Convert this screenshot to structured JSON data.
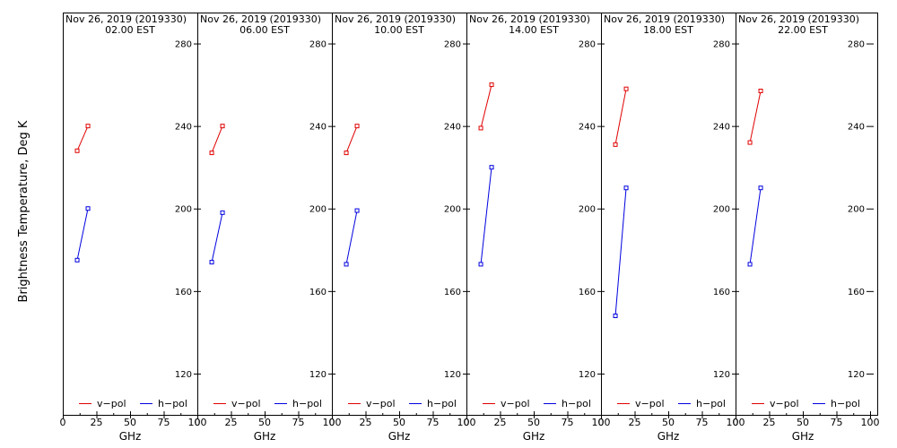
{
  "ylabel": "Brightness Temperature, Deg K",
  "colors": {
    "vpol": "#e00000",
    "hpol": "#0000e0",
    "axis": "#000000",
    "background": "#ffffff"
  },
  "chart_data": [
    {
      "type": "line",
      "title": "Nov 26, 2019 (2019330)",
      "subtitle": "02.00 EST",
      "xlabel": "GHz",
      "xlim": [
        0,
        100
      ],
      "ylim": [
        100,
        295
      ],
      "x_ticks": [
        0,
        25,
        50,
        75,
        100
      ],
      "y_ticks": [
        120,
        160,
        200,
        240,
        280
      ],
      "legend": [
        "v−pol",
        "h−pol"
      ],
      "series": [
        {
          "name": "v−pol",
          "x": [
            10.7,
            18.7
          ],
          "values": [
            228,
            240
          ]
        },
        {
          "name": "h−pol",
          "x": [
            10.7,
            18.7
          ],
          "values": [
            175,
            200
          ]
        }
      ]
    },
    {
      "type": "line",
      "title": "Nov 26, 2019 (2019330)",
      "subtitle": "06.00 EST",
      "xlabel": "GHz",
      "xlim": [
        0,
        100
      ],
      "ylim": [
        100,
        295
      ],
      "x_ticks": [
        0,
        25,
        50,
        75,
        100
      ],
      "y_ticks": [
        120,
        160,
        200,
        240,
        280
      ],
      "legend": [
        "v−pol",
        "h−pol"
      ],
      "series": [
        {
          "name": "v−pol",
          "x": [
            10.7,
            18.7
          ],
          "values": [
            227,
            240
          ]
        },
        {
          "name": "h−pol",
          "x": [
            10.7,
            18.7
          ],
          "values": [
            174,
            198
          ]
        }
      ]
    },
    {
      "type": "line",
      "title": "Nov 26, 2019 (2019330)",
      "subtitle": "10.00 EST",
      "xlabel": "GHz",
      "xlim": [
        0,
        100
      ],
      "ylim": [
        100,
        295
      ],
      "x_ticks": [
        0,
        25,
        50,
        75,
        100
      ],
      "y_ticks": [
        120,
        160,
        200,
        240,
        280
      ],
      "legend": [
        "v−pol",
        "h−pol"
      ],
      "series": [
        {
          "name": "v−pol",
          "x": [
            10.7,
            18.7
          ],
          "values": [
            227,
            240
          ]
        },
        {
          "name": "h−pol",
          "x": [
            10.7,
            18.7
          ],
          "values": [
            173,
            199
          ]
        }
      ]
    },
    {
      "type": "line",
      "title": "Nov 26, 2019 (2019330)",
      "subtitle": "14.00 EST",
      "xlabel": "GHz",
      "xlim": [
        0,
        100
      ],
      "ylim": [
        100,
        295
      ],
      "x_ticks": [
        0,
        25,
        50,
        75,
        100
      ],
      "y_ticks": [
        120,
        160,
        200,
        240,
        280
      ],
      "legend": [
        "v−pol",
        "h−pol"
      ],
      "series": [
        {
          "name": "v−pol",
          "x": [
            10.7,
            18.7
          ],
          "values": [
            239,
            260
          ]
        },
        {
          "name": "h−pol",
          "x": [
            10.7,
            18.7
          ],
          "values": [
            173,
            220
          ]
        }
      ]
    },
    {
      "type": "line",
      "title": "Nov 26, 2019 (2019330)",
      "subtitle": "18.00 EST",
      "xlabel": "GHz",
      "xlim": [
        0,
        100
      ],
      "ylim": [
        100,
        295
      ],
      "x_ticks": [
        0,
        25,
        50,
        75,
        100
      ],
      "y_ticks": [
        120,
        160,
        200,
        240,
        280
      ],
      "legend": [
        "v−pol",
        "h−pol"
      ],
      "series": [
        {
          "name": "v−pol",
          "x": [
            10.7,
            18.7
          ],
          "values": [
            231,
            258
          ]
        },
        {
          "name": "h−pol",
          "x": [
            10.7,
            18.7
          ],
          "values": [
            148,
            210
          ]
        }
      ]
    },
    {
      "type": "line",
      "title": "Nov 26, 2019 (2019330)",
      "subtitle": "22.00 EST",
      "xlabel": "GHz",
      "xlim": [
        0,
        100
      ],
      "ylim": [
        100,
        295
      ],
      "x_ticks": [
        0,
        25,
        50,
        75,
        100
      ],
      "y_ticks": [
        120,
        160,
        200,
        240,
        280
      ],
      "legend": [
        "v−pol",
        "h−pol"
      ],
      "series": [
        {
          "name": "v−pol",
          "x": [
            10.7,
            18.7
          ],
          "values": [
            232,
            257
          ]
        },
        {
          "name": "h−pol",
          "x": [
            10.7,
            18.7
          ],
          "values": [
            173,
            210
          ]
        }
      ]
    }
  ]
}
